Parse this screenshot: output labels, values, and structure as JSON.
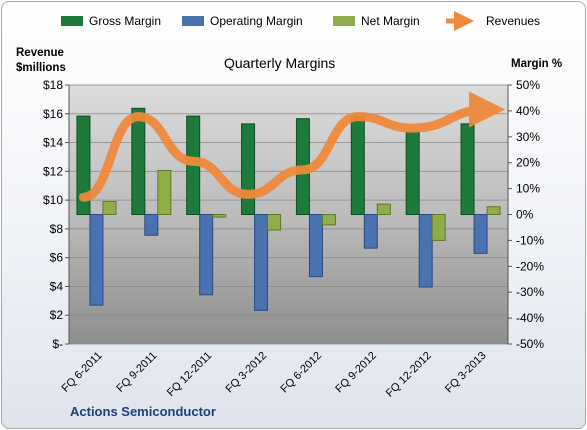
{
  "chart_data": {
    "type": "bar",
    "title": "Quarterly Margins",
    "left_axis_title_line1": "Revenue",
    "left_axis_title_line2": "$millions",
    "right_axis_title": "Margin %",
    "footer_label": "Actions Semiconductor",
    "categories": [
      "FQ 6-2011",
      "FQ 9-2011",
      "FQ 12-2011",
      "FQ 3-2012",
      "FQ 6-2012",
      "FQ 9-2012",
      "FQ 12-2012",
      "FQ 3-2013"
    ],
    "left_axis": {
      "min": 0,
      "max": 18,
      "step": 2,
      "tick_labels": [
        "$-",
        "$2",
        "$4",
        "$6",
        "$8",
        "$10",
        "$12",
        "$14",
        "$16",
        "$18"
      ]
    },
    "right_axis": {
      "min": -50,
      "max": 50,
      "step": 10,
      "tick_labels": [
        "-50%",
        "-40%",
        "-30%",
        "-20%",
        "-10%",
        "0%",
        "10%",
        "20%",
        "30%",
        "40%",
        "50%"
      ]
    },
    "legend_position": "top",
    "series": [
      {
        "name": "Gross Margin",
        "axis": "right",
        "kind": "bar",
        "color": "#1e7a3a",
        "values": [
          38,
          41,
          38,
          35,
          37,
          38,
          32,
          35
        ]
      },
      {
        "name": "Operating Margin",
        "axis": "right",
        "kind": "bar",
        "color": "#4a72b0",
        "values": [
          -35,
          -8,
          -31,
          -37,
          -24,
          -13,
          -28,
          -15
        ]
      },
      {
        "name": "Net Margin",
        "axis": "right",
        "kind": "bar",
        "color": "#8fae4a",
        "values": [
          5,
          17,
          -1,
          -6,
          -4,
          4,
          -10,
          3
        ]
      },
      {
        "name": "Revenues",
        "axis": "left",
        "kind": "line",
        "color": "#ee8a3c",
        "values": [
          10.2,
          15.8,
          12.7,
          10.4,
          12.1,
          15.8,
          15.0,
          16.3
        ]
      }
    ],
    "gridlines": true
  }
}
